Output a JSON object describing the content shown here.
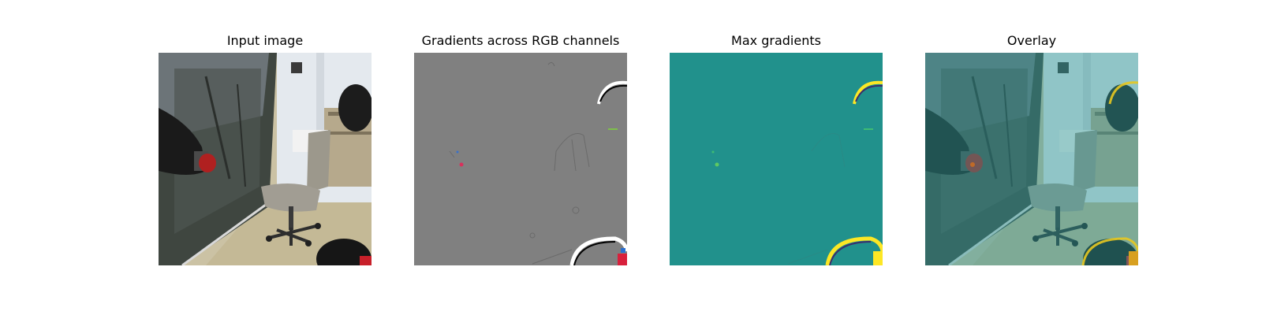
{
  "figure": {
    "panels": [
      {
        "title": "Input image"
      },
      {
        "title": "Gradients across RGB channels"
      },
      {
        "title": "Max gradients"
      },
      {
        "title": "Overlay"
      }
    ]
  },
  "colors": {
    "gradient_gray": "#808080",
    "viridis_mid": "#21918c",
    "viridis_high": "#fde725",
    "overlay_tint": "#2a9a96",
    "background": "#ffffff"
  }
}
